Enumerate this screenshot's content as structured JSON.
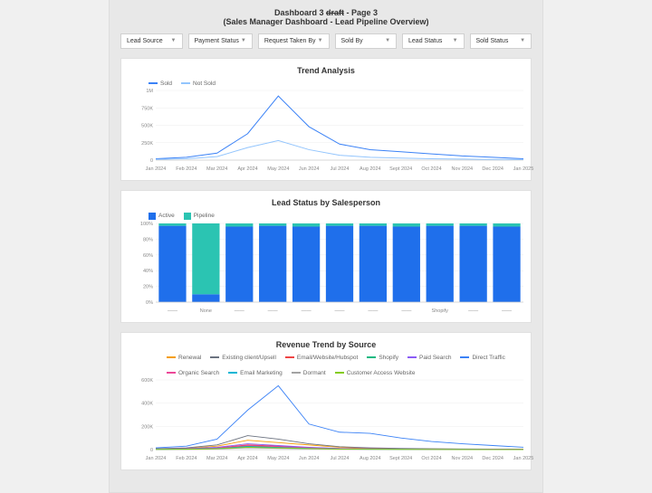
{
  "header": {
    "title_prefix": "Dashboard 3 ",
    "title_strike": "draft",
    "title_suffix": " - Page 3",
    "subtitle": "(Sales Manager Dashboard - Lead Pipeline Overview)"
  },
  "filters": [
    {
      "label": "Lead Source"
    },
    {
      "label": "Payment Status"
    },
    {
      "label": "Request Taken By"
    },
    {
      "label": "Sold By"
    },
    {
      "label": "Lead Status"
    },
    {
      "label": "Sold Status"
    }
  ],
  "chart1": {
    "title": "Trend Analysis",
    "type": "line",
    "x_labels": [
      "Jan 2024",
      "Feb 2024",
      "Mar 2024",
      "Apr 2024",
      "May 2024",
      "Jun 2024",
      "Jul 2024",
      "Aug 2024",
      "Sept 2024",
      "Oct 2024",
      "Nov 2024",
      "Dec 2024",
      "Jan 2025"
    ],
    "y_ticks": [
      0,
      250000,
      500000,
      750000,
      1000000
    ],
    "y_tick_labels": [
      "0",
      "250K",
      "500K",
      "750K",
      "1M"
    ],
    "series": [
      {
        "name": "Sold",
        "color": "#3b82f6",
        "values": [
          20000,
          40000,
          100000,
          380000,
          920000,
          480000,
          230000,
          150000,
          120000,
          90000,
          60000,
          40000,
          20000
        ]
      },
      {
        "name": "Not Sold",
        "color": "#93c5fd",
        "values": [
          10000,
          20000,
          50000,
          180000,
          280000,
          150000,
          70000,
          40000,
          30000,
          20000,
          15000,
          10000,
          8000
        ]
      }
    ],
    "grid_color": "#eeeeee",
    "axis_color": "#cccccc",
    "background": "#ffffff",
    "ylim": [
      0,
      1000000
    ]
  },
  "chart2": {
    "title": "Lead Status by Salesperson",
    "type": "stacked-bar-percent",
    "x_labels": [
      "——",
      "None",
      "——",
      "——",
      "——",
      "——",
      "——",
      "——",
      "Shopify",
      "——",
      "——"
    ],
    "y_ticks": [
      0,
      20,
      40,
      60,
      80,
      100
    ],
    "y_tick_labels": [
      "0%",
      "20%",
      "40%",
      "60%",
      "80%",
      "100%"
    ],
    "bar_count": 11,
    "bar_width": 0.82,
    "series": [
      {
        "name": "Active",
        "color": "#1f6feb",
        "values": [
          97,
          10,
          96,
          97,
          96,
          97,
          97,
          96,
          97,
          97,
          96
        ]
      },
      {
        "name": "Pipeline",
        "color": "#2bc4b2",
        "values": [
          3,
          90,
          4,
          3,
          4,
          3,
          3,
          4,
          3,
          3,
          4
        ]
      }
    ],
    "background": "#ffffff",
    "grid_color": "#eeeeee",
    "ylim": [
      0,
      100
    ]
  },
  "chart3": {
    "title": "Revenue Trend by Source",
    "type": "line",
    "x_labels": [
      "Jan 2024",
      "Feb 2024",
      "Mar 2024",
      "Apr 2024",
      "May 2024",
      "Jun 2024",
      "Jul 2024",
      "Aug 2024",
      "Sept 2024",
      "Oct 2024",
      "Nov 2024",
      "Dec 2024",
      "Jan 2025"
    ],
    "y_ticks": [
      0,
      200000,
      400000,
      600000
    ],
    "y_tick_labels": [
      "0",
      "200K",
      "400K",
      "600K"
    ],
    "series": [
      {
        "name": "Renewal",
        "color": "#f59e0b",
        "values": [
          5000,
          10000,
          30000,
          80000,
          60000,
          40000,
          20000,
          10000,
          8000,
          5000,
          4000,
          3000,
          2000
        ]
      },
      {
        "name": "Existing client/Upsell",
        "color": "#6b7280",
        "values": [
          8000,
          15000,
          40000,
          120000,
          90000,
          50000,
          25000,
          15000,
          10000,
          7000,
          5000,
          4000,
          3000
        ]
      },
      {
        "name": "Email/Website/Hubspot",
        "color": "#ef4444",
        "values": [
          3000,
          6000,
          15000,
          40000,
          30000,
          18000,
          9000,
          5000,
          4000,
          3000,
          2000,
          1500,
          1000
        ]
      },
      {
        "name": "Shopify",
        "color": "#10b981",
        "values": [
          2000,
          4000,
          10000,
          30000,
          22000,
          12000,
          6000,
          4000,
          3000,
          2000,
          1500,
          1000,
          800
        ]
      },
      {
        "name": "Paid Search",
        "color": "#8b5cf6",
        "values": [
          4000,
          8000,
          20000,
          50000,
          35000,
          20000,
          10000,
          6000,
          5000,
          4000,
          3000,
          2000,
          1500
        ]
      },
      {
        "name": "Direct Traffic",
        "color": "#3b82f6",
        "values": [
          15000,
          30000,
          90000,
          340000,
          550000,
          220000,
          150000,
          140000,
          100000,
          70000,
          50000,
          35000,
          20000
        ]
      },
      {
        "name": "Organic Search",
        "color": "#ec4899",
        "values": [
          3000,
          5000,
          12000,
          35000,
          25000,
          14000,
          7000,
          4000,
          3000,
          2000,
          1500,
          1000,
          800
        ]
      },
      {
        "name": "Email Marketing",
        "color": "#06b6d4",
        "values": [
          2000,
          4000,
          9000,
          25000,
          18000,
          10000,
          5000,
          3000,
          2000,
          1500,
          1000,
          800,
          600
        ]
      },
      {
        "name": "Dormant",
        "color": "#a3a3a3",
        "values": [
          1000,
          2000,
          5000,
          15000,
          10000,
          6000,
          3000,
          2000,
          1500,
          1000,
          800,
          600,
          500
        ]
      },
      {
        "name": "Customer Access Website",
        "color": "#84cc16",
        "values": [
          1500,
          3000,
          7000,
          20000,
          14000,
          8000,
          4000,
          2500,
          2000,
          1500,
          1000,
          800,
          600
        ]
      }
    ],
    "background": "#ffffff",
    "grid_color": "#eeeeee",
    "ylim": [
      0,
      600000
    ]
  }
}
